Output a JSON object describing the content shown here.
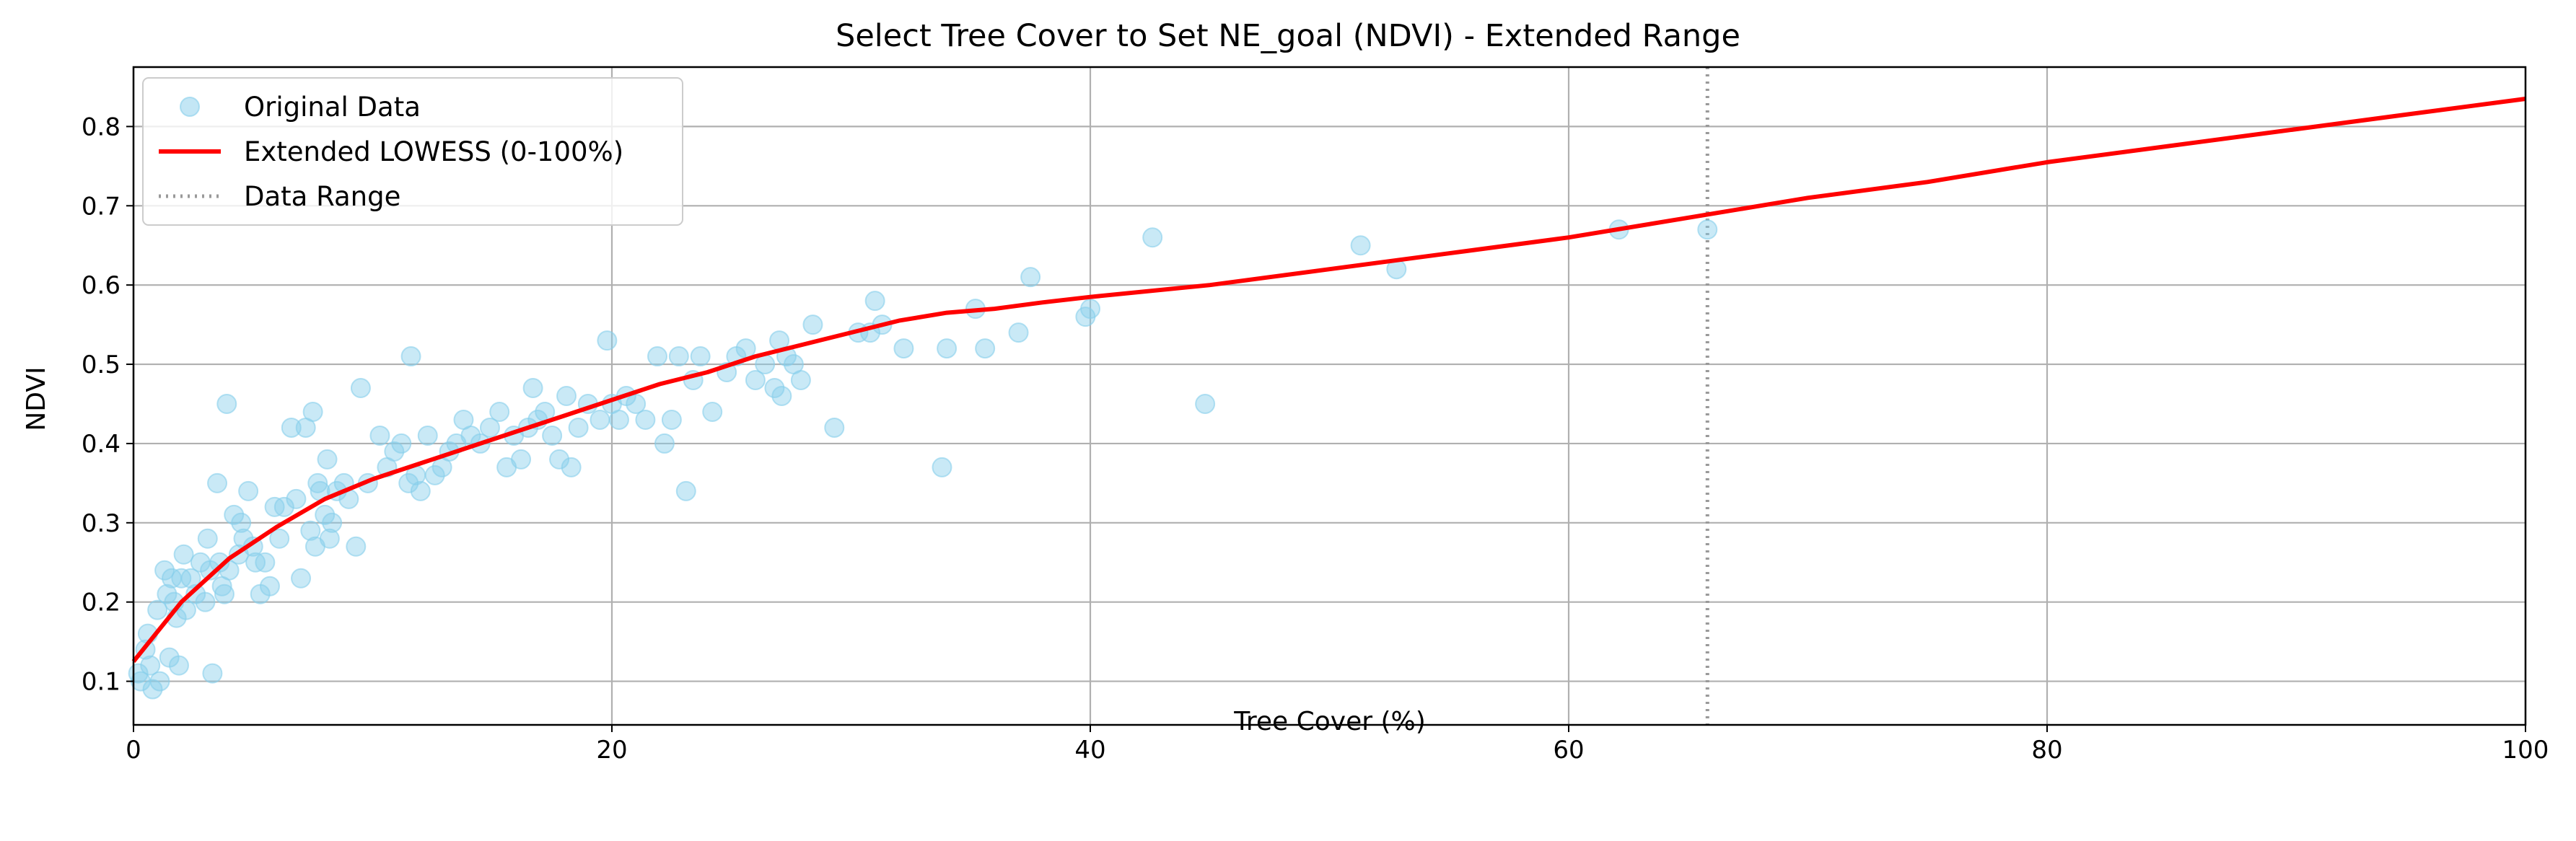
{
  "chart_data": {
    "type": "scatter",
    "title": "Select Tree Cover to Set NE_goal (NDVI) - Extended Range",
    "xlabel": "Tree Cover (%)",
    "ylabel": "NDVI",
    "xlim": [
      0,
      100
    ],
    "ylim": [
      0.045,
      0.875
    ],
    "x_ticks": [
      0,
      20,
      40,
      60,
      80,
      100
    ],
    "y_ticks": [
      0.1,
      0.2,
      0.3,
      0.4,
      0.5,
      0.6,
      0.7,
      0.8
    ],
    "x_tick_labels": [
      "0",
      "20",
      "40",
      "60",
      "80",
      "100"
    ],
    "y_tick_labels": [
      "0.1",
      "0.2",
      "0.3",
      "0.4",
      "0.5",
      "0.6",
      "0.7",
      "0.8"
    ],
    "grid": true,
    "legend_position": "top-left",
    "colors": {
      "scatter": "#87ceeb",
      "lowess": "#ff0000",
      "range_line": "#999999",
      "grid": "#b0b0b0"
    },
    "series": [
      {
        "name": "Original Data",
        "kind": "scatter",
        "points": [
          [
            0.2,
            0.11
          ],
          [
            0.3,
            0.1
          ],
          [
            0.5,
            0.14
          ],
          [
            0.6,
            0.16
          ],
          [
            0.7,
            0.12
          ],
          [
            0.8,
            0.09
          ],
          [
            1.0,
            0.19
          ],
          [
            1.1,
            0.1
          ],
          [
            1.3,
            0.24
          ],
          [
            1.4,
            0.21
          ],
          [
            1.5,
            0.13
          ],
          [
            1.6,
            0.23
          ],
          [
            1.7,
            0.2
          ],
          [
            1.8,
            0.18
          ],
          [
            1.9,
            0.12
          ],
          [
            2.0,
            0.23
          ],
          [
            2.1,
            0.26
          ],
          [
            2.2,
            0.19
          ],
          [
            2.4,
            0.23
          ],
          [
            2.6,
            0.21
          ],
          [
            2.8,
            0.25
          ],
          [
            3.0,
            0.2
          ],
          [
            3.1,
            0.28
          ],
          [
            3.2,
            0.24
          ],
          [
            3.3,
            0.11
          ],
          [
            3.5,
            0.35
          ],
          [
            3.6,
            0.25
          ],
          [
            3.7,
            0.22
          ],
          [
            3.8,
            0.21
          ],
          [
            3.9,
            0.45
          ],
          [
            4.0,
            0.24
          ],
          [
            4.2,
            0.31
          ],
          [
            4.4,
            0.26
          ],
          [
            4.5,
            0.3
          ],
          [
            4.6,
            0.28
          ],
          [
            4.8,
            0.34
          ],
          [
            5.0,
            0.27
          ],
          [
            5.1,
            0.25
          ],
          [
            5.3,
            0.21
          ],
          [
            5.5,
            0.25
          ],
          [
            5.7,
            0.22
          ],
          [
            5.9,
            0.32
          ],
          [
            6.1,
            0.28
          ],
          [
            6.3,
            0.32
          ],
          [
            6.6,
            0.42
          ],
          [
            6.8,
            0.33
          ],
          [
            7.0,
            0.23
          ],
          [
            7.2,
            0.42
          ],
          [
            7.4,
            0.29
          ],
          [
            7.5,
            0.44
          ],
          [
            7.6,
            0.27
          ],
          [
            7.7,
            0.35
          ],
          [
            7.8,
            0.34
          ],
          [
            8.0,
            0.31
          ],
          [
            8.1,
            0.38
          ],
          [
            8.2,
            0.28
          ],
          [
            8.3,
            0.3
          ],
          [
            8.5,
            0.34
          ],
          [
            8.8,
            0.35
          ],
          [
            9.0,
            0.33
          ],
          [
            9.3,
            0.27
          ],
          [
            9.5,
            0.47
          ],
          [
            9.8,
            0.35
          ],
          [
            10.3,
            0.41
          ],
          [
            10.6,
            0.37
          ],
          [
            10.9,
            0.39
          ],
          [
            11.2,
            0.4
          ],
          [
            11.5,
            0.35
          ],
          [
            11.6,
            0.51
          ],
          [
            11.8,
            0.36
          ],
          [
            12.0,
            0.34
          ],
          [
            12.3,
            0.41
          ],
          [
            12.6,
            0.36
          ],
          [
            12.9,
            0.37
          ],
          [
            13.2,
            0.39
          ],
          [
            13.5,
            0.4
          ],
          [
            13.8,
            0.43
          ],
          [
            14.1,
            0.41
          ],
          [
            14.5,
            0.4
          ],
          [
            14.9,
            0.42
          ],
          [
            15.3,
            0.44
          ],
          [
            15.6,
            0.37
          ],
          [
            15.9,
            0.41
          ],
          [
            16.2,
            0.38
          ],
          [
            16.5,
            0.42
          ],
          [
            16.7,
            0.47
          ],
          [
            16.9,
            0.43
          ],
          [
            17.2,
            0.44
          ],
          [
            17.5,
            0.41
          ],
          [
            17.8,
            0.38
          ],
          [
            18.1,
            0.46
          ],
          [
            18.3,
            0.37
          ],
          [
            18.6,
            0.42
          ],
          [
            19.0,
            0.45
          ],
          [
            19.5,
            0.43
          ],
          [
            19.8,
            0.53
          ],
          [
            20.0,
            0.45
          ],
          [
            20.3,
            0.43
          ],
          [
            20.6,
            0.46
          ],
          [
            21.0,
            0.45
          ],
          [
            21.4,
            0.43
          ],
          [
            21.9,
            0.51
          ],
          [
            22.2,
            0.4
          ],
          [
            22.5,
            0.43
          ],
          [
            22.8,
            0.51
          ],
          [
            23.1,
            0.34
          ],
          [
            23.4,
            0.48
          ],
          [
            23.7,
            0.51
          ],
          [
            24.2,
            0.44
          ],
          [
            24.8,
            0.49
          ],
          [
            25.2,
            0.51
          ],
          [
            25.6,
            0.52
          ],
          [
            26.0,
            0.48
          ],
          [
            26.4,
            0.5
          ],
          [
            26.8,
            0.47
          ],
          [
            27.0,
            0.53
          ],
          [
            27.1,
            0.46
          ],
          [
            27.3,
            0.51
          ],
          [
            27.6,
            0.5
          ],
          [
            27.9,
            0.48
          ],
          [
            28.4,
            0.55
          ],
          [
            29.3,
            0.42
          ],
          [
            30.3,
            0.54
          ],
          [
            30.8,
            0.54
          ],
          [
            31.0,
            0.58
          ],
          [
            31.3,
            0.55
          ],
          [
            32.2,
            0.52
          ],
          [
            33.8,
            0.37
          ],
          [
            34.0,
            0.52
          ],
          [
            35.2,
            0.57
          ],
          [
            35.6,
            0.52
          ],
          [
            37.0,
            0.54
          ],
          [
            37.5,
            0.61
          ],
          [
            39.8,
            0.56
          ],
          [
            40.0,
            0.57
          ],
          [
            42.6,
            0.66
          ],
          [
            44.8,
            0.45
          ],
          [
            51.3,
            0.65
          ],
          [
            52.8,
            0.62
          ],
          [
            62.1,
            0.67
          ],
          [
            65.8,
            0.67
          ]
        ]
      },
      {
        "name": "Extended LOWESS (0-100%)",
        "kind": "line",
        "points": [
          [
            0,
            0.125
          ],
          [
            2,
            0.2
          ],
          [
            4,
            0.255
          ],
          [
            6,
            0.295
          ],
          [
            8,
            0.33
          ],
          [
            10,
            0.355
          ],
          [
            12,
            0.375
          ],
          [
            14,
            0.395
          ],
          [
            16,
            0.415
          ],
          [
            18,
            0.435
          ],
          [
            20,
            0.455
          ],
          [
            22,
            0.475
          ],
          [
            24,
            0.49
          ],
          [
            26,
            0.51
          ],
          [
            28,
            0.525
          ],
          [
            30,
            0.54
          ],
          [
            32,
            0.555
          ],
          [
            34,
            0.565
          ],
          [
            36,
            0.57
          ],
          [
            38,
            0.578
          ],
          [
            40,
            0.585
          ],
          [
            45,
            0.6
          ],
          [
            50,
            0.62
          ],
          [
            55,
            0.64
          ],
          [
            60,
            0.66
          ],
          [
            65,
            0.685
          ],
          [
            70,
            0.71
          ],
          [
            75,
            0.73
          ],
          [
            80,
            0.755
          ],
          [
            85,
            0.775
          ],
          [
            90,
            0.795
          ],
          [
            95,
            0.815
          ],
          [
            100,
            0.835
          ]
        ]
      },
      {
        "name": "Data Range",
        "kind": "vline",
        "x": 65.8
      }
    ]
  }
}
